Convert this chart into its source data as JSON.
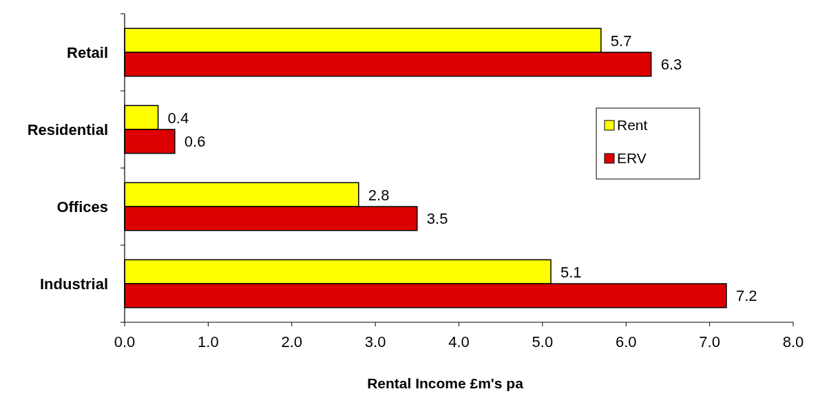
{
  "chart_data": {
    "type": "bar",
    "orientation": "horizontal",
    "xlabel": "Rental Income £m's pa",
    "categories": [
      "Retail",
      "Residential",
      "Offices",
      "Industrial"
    ],
    "series": [
      {
        "name": "Rent",
        "color": "#ffff00",
        "values": [
          5.7,
          0.4,
          2.8,
          5.1
        ]
      },
      {
        "name": "ERV",
        "color": "#dd0000",
        "values": [
          6.3,
          0.6,
          3.5,
          7.2
        ]
      }
    ],
    "xlim": [
      0,
      8
    ],
    "xticks": [
      {
        "value": 0,
        "label": "0.0"
      },
      {
        "value": 1,
        "label": "1.0"
      },
      {
        "value": 2,
        "label": "2.0"
      },
      {
        "value": 3,
        "label": "3.0"
      },
      {
        "value": 4,
        "label": "4.0"
      },
      {
        "value": 5,
        "label": "5.0"
      },
      {
        "value": 6,
        "label": "6.0"
      },
      {
        "value": 7,
        "label": "7.0"
      },
      {
        "value": 8,
        "label": "8.0"
      }
    ],
    "data_labels": true,
    "legend": "right",
    "grid": false
  }
}
